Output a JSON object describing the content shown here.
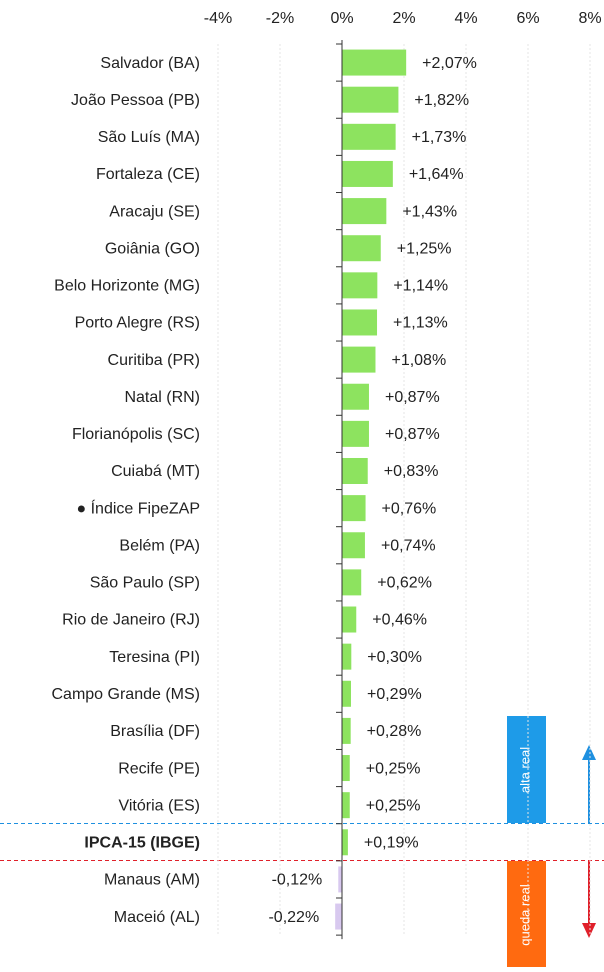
{
  "chart_data": {
    "type": "bar",
    "orientation": "horizontal",
    "categories": [
      "Salvador (BA)",
      "João Pessoa (PB)",
      "São Luís (MA)",
      "Fortaleza (CE)",
      "Aracaju (SE)",
      "Goiânia (GO)",
      "Belo Horizonte (MG)",
      "Porto Alegre (RS)",
      "Curitiba (PR)",
      "Natal (RN)",
      "Florianópolis (SC)",
      "Cuiabá (MT)",
      "● Índice FipeZAP",
      "Belém (PA)",
      "São Paulo (SP)",
      "Rio de Janeiro (RJ)",
      "Teresina (PI)",
      "Campo Grande (MS)",
      "Brasília (DF)",
      "Recife (PE)",
      "Vitória (ES)",
      "IPCA-15 (IBGE)",
      "Manaus (AM)",
      "Maceió (AL)"
    ],
    "values": [
      2.07,
      1.82,
      1.73,
      1.64,
      1.43,
      1.25,
      1.14,
      1.13,
      1.08,
      0.87,
      0.87,
      0.83,
      0.76,
      0.74,
      0.62,
      0.46,
      0.3,
      0.29,
      0.28,
      0.25,
      0.25,
      0.19,
      -0.12,
      -0.22
    ],
    "value_labels": [
      "+2,07%",
      "+1,82%",
      "+1,73%",
      "+1,64%",
      "+1,43%",
      "+1,25%",
      "+1,14%",
      "+1,13%",
      "+1,08%",
      "+0,87%",
      "+0,87%",
      "+0,83%",
      "+0,76%",
      "+0,74%",
      "+0,62%",
      "+0,46%",
      "+0,30%",
      "+0,29%",
      "+0,28%",
      "+0,25%",
      "+0,25%",
      "+0,19%",
      "-0,12%",
      "-0,22%"
    ],
    "color": "#8de35f",
    "negative_color": "#d8c9ef",
    "bold_index": 21,
    "xlim": [
      -4,
      8
    ],
    "xticks": [
      {
        "value": -4,
        "label": "-4%"
      },
      {
        "value": -2,
        "label": "-2%"
      },
      {
        "value": 0,
        "label": "0%"
      },
      {
        "value": 2,
        "label": "2%"
      },
      {
        "value": 4,
        "label": "4%"
      },
      {
        "value": 6,
        "label": "6%"
      },
      {
        "value": 8,
        "label": "8%"
      }
    ],
    "grid": true,
    "annotations": [
      "alta real",
      "queda real"
    ]
  }
}
